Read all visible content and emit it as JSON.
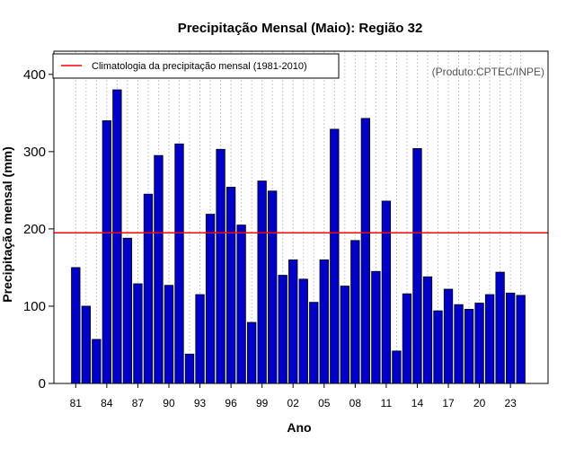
{
  "chart_data": {
    "type": "bar",
    "title": "Precipitação Mensal (Maio): Região 32",
    "xlabel": "Ano",
    "ylabel": "Precipitação mensal (mm)",
    "credit": "(Produto:CPTEC/INPE)",
    "ylim": [
      0,
      430
    ],
    "yticks": [
      0,
      100,
      200,
      300,
      400
    ],
    "years": [
      1981,
      1982,
      1983,
      1984,
      1985,
      1986,
      1987,
      1988,
      1989,
      1990,
      1991,
      1992,
      1993,
      1994,
      1995,
      1996,
      1997,
      1998,
      1999,
      2000,
      2001,
      2002,
      2003,
      2004,
      2005,
      2006,
      2007,
      2008,
      2009,
      2010,
      2011,
      2012,
      2013,
      2014,
      2015,
      2016,
      2017,
      2018,
      2019,
      2020,
      2021,
      2022,
      2023,
      2024
    ],
    "values": [
      150,
      100,
      57,
      340,
      380,
      188,
      129,
      245,
      295,
      127,
      310,
      38,
      115,
      219,
      303,
      254,
      205,
      79,
      262,
      249,
      140,
      160,
      135,
      105,
      160,
      329,
      126,
      185,
      343,
      145,
      236,
      42,
      116,
      304,
      138,
      94,
      122,
      102,
      96,
      104,
      115,
      144,
      117,
      114
    ],
    "xtick_labels": [
      "81",
      "84",
      "87",
      "90",
      "93",
      "96",
      "99",
      "02",
      "05",
      "08",
      "11",
      "14",
      "17",
      "20",
      "23"
    ],
    "xtick_years": [
      1981,
      1984,
      1987,
      1990,
      1993,
      1996,
      1999,
      2002,
      2005,
      2008,
      2011,
      2014,
      2017,
      2020,
      2023
    ],
    "climatology": {
      "label": "Climatologia da precipitação mensal (1981-2010)",
      "value": 195
    },
    "colors": {
      "bar_fill": "#0000cc",
      "bar_stroke": "#000000",
      "climatology_line": "#ff0000",
      "grid": "#c8c8c8",
      "credit_text": "#555555"
    },
    "legend_position": "top-left"
  }
}
